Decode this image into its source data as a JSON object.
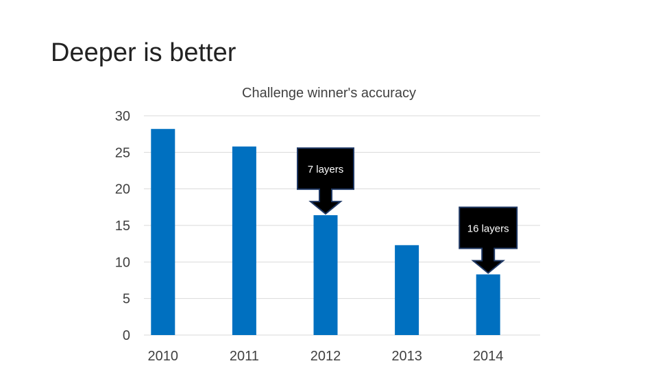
{
  "slide": {
    "title": "Deeper is better"
  },
  "chart_data": {
    "type": "bar",
    "title": "Challenge winner's accuracy",
    "xlabel": "",
    "ylabel": "",
    "categories": [
      "2010",
      "2011",
      "2012",
      "2013",
      "2014"
    ],
    "values": [
      28.2,
      25.8,
      16.4,
      12.3,
      8.3
    ],
    "ylim": [
      0,
      30
    ],
    "yticks": [
      0,
      5,
      10,
      15,
      20,
      25,
      30
    ],
    "grid": true,
    "legend": "none",
    "colors": {
      "bar": "#0070C0",
      "grid": "#D9D9D9",
      "callout_fill": "#000000",
      "callout_border": "#1F3864"
    },
    "annotations": [
      {
        "category": "2012",
        "text": "7 layers"
      },
      {
        "category": "2014",
        "text": "16 layers"
      }
    ]
  }
}
